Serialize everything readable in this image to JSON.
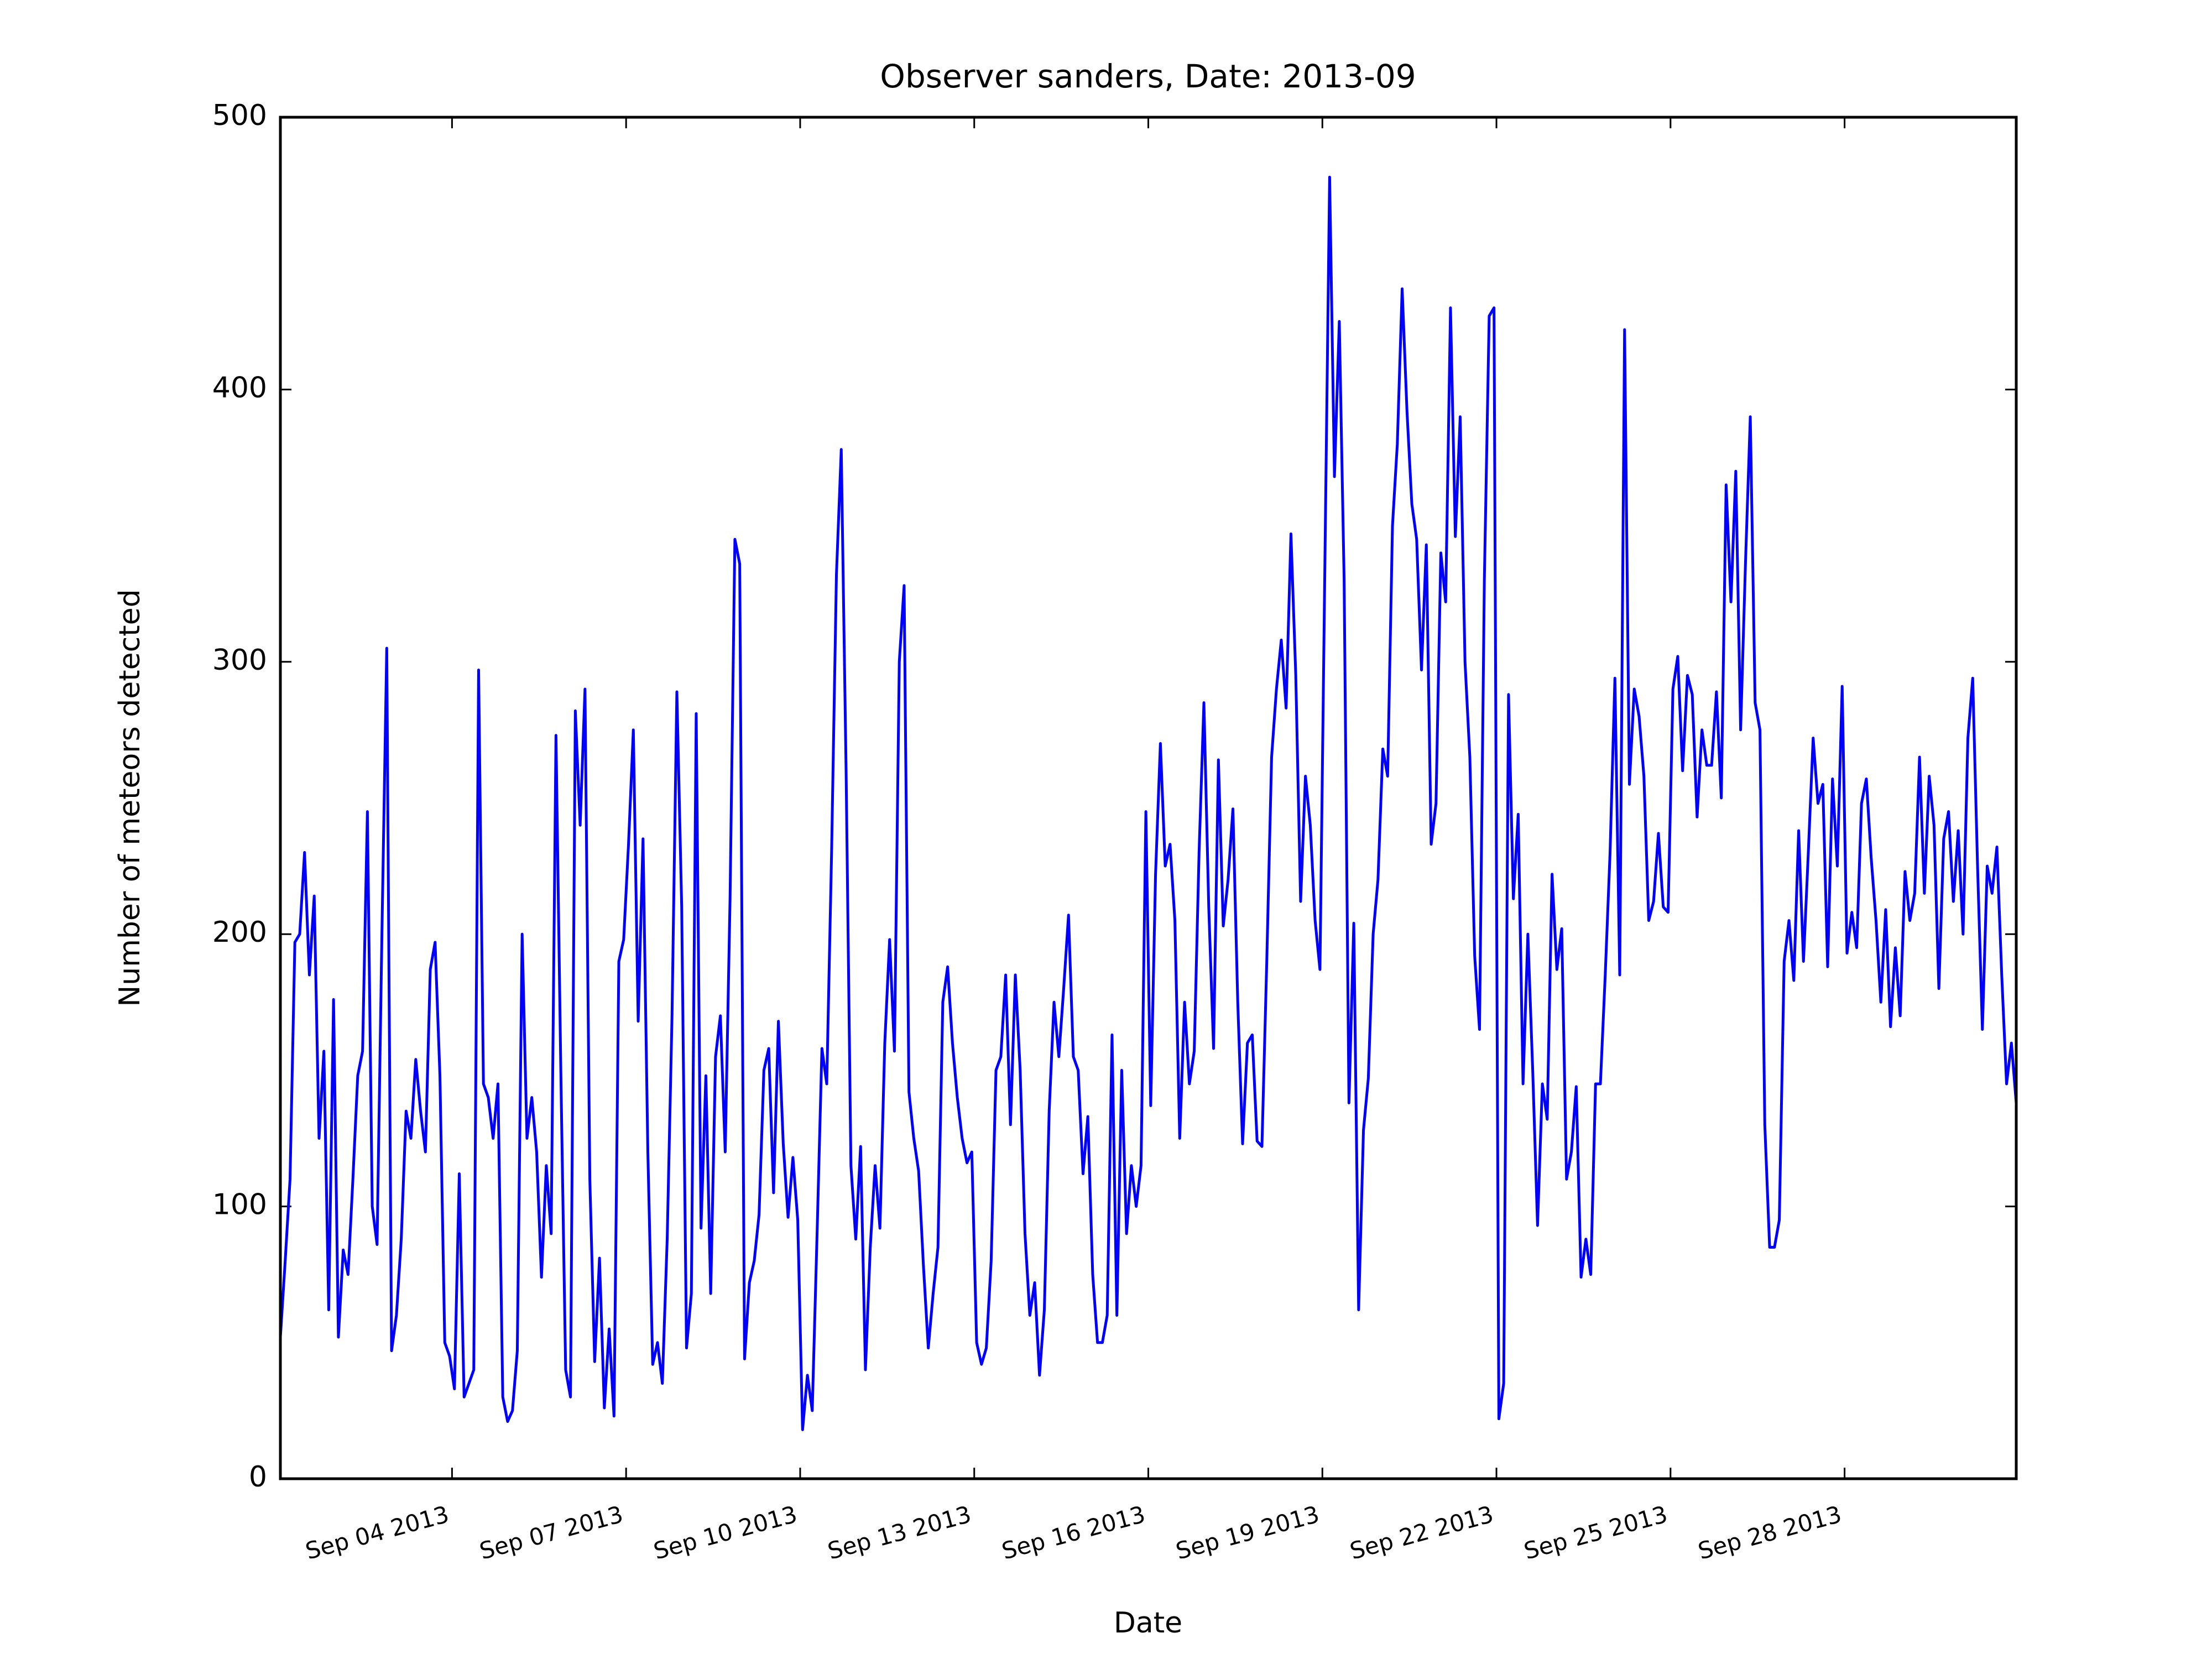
{
  "chart_data": {
    "type": "line",
    "title": "Observer sanders, Date: 2013-09",
    "x_label": "Date",
    "y_label": "Number of meteors detected",
    "x": [
      1,
      3,
      5,
      7,
      9,
      11,
      13,
      15,
      17,
      19,
      21,
      23,
      25,
      27,
      29,
      31,
      33,
      35,
      37,
      39,
      41,
      43,
      45,
      47,
      49,
      51,
      53,
      55,
      57,
      59,
      61,
      63,
      65,
      67,
      69,
      71,
      73,
      75,
      77,
      79,
      81,
      83,
      85,
      87,
      89,
      91,
      93,
      95,
      97,
      99,
      101,
      103,
      105,
      107,
      109,
      111,
      113,
      115,
      117,
      119,
      121,
      123,
      125,
      127,
      129,
      131,
      133,
      135,
      137,
      139,
      141,
      143,
      145,
      147,
      149,
      151,
      153,
      155,
      157,
      159,
      161,
      163,
      165,
      167,
      169,
      171,
      173,
      175,
      177,
      179,
      181,
      183,
      185,
      187,
      189,
      191,
      193,
      195,
      197,
      199,
      201,
      203,
      205,
      207,
      209,
      211,
      213,
      215,
      217,
      219,
      221,
      223,
      225,
      227,
      229,
      231,
      233,
      235,
      237,
      239,
      241,
      243,
      245,
      247,
      249,
      251,
      253,
      255,
      257,
      259,
      261,
      263,
      265,
      267,
      269,
      271,
      273,
      275,
      277,
      279,
      281,
      283,
      285,
      287,
      289,
      291,
      293,
      295,
      297,
      299,
      301,
      303,
      305,
      307,
      309,
      311,
      313,
      315,
      317,
      319,
      321,
      323,
      325,
      327,
      329,
      331,
      333,
      335,
      337,
      339,
      341,
      343,
      345,
      347,
      349,
      351,
      353,
      355,
      357,
      359,
      361,
      363,
      365,
      367,
      369,
      371,
      373,
      375,
      377,
      379,
      381,
      383,
      385,
      387,
      389,
      391,
      393,
      395,
      397,
      399,
      401,
      403,
      405,
      407,
      409,
      411,
      413,
      415,
      417,
      419,
      421,
      423,
      425,
      427,
      429,
      431,
      433,
      435,
      437,
      439,
      441,
      443,
      445,
      447,
      449,
      451,
      453,
      455,
      457,
      459,
      461,
      463,
      465,
      467,
      469,
      471,
      473,
      475,
      477,
      479,
      481,
      483,
      485,
      487,
      489,
      491,
      493,
      495,
      497,
      499,
      501,
      503,
      505,
      507,
      509,
      511,
      513,
      515,
      517,
      519,
      521,
      523,
      525,
      527,
      529,
      531,
      533,
      535,
      537,
      539,
      541,
      543,
      545,
      547,
      549,
      551,
      553,
      555,
      557,
      559,
      561,
      563,
      565,
      567,
      569,
      571,
      573,
      575,
      577,
      579,
      581,
      583,
      585,
      587,
      589,
      591,
      593,
      595,
      597,
      599,
      601,
      603,
      605,
      607,
      609,
      611,
      613,
      615,
      617,
      619,
      621,
      623,
      625,
      627,
      629,
      631,
      633,
      635,
      637,
      639,
      641,
      643,
      645,
      647,
      649,
      651,
      653,
      655,
      657,
      659,
      661,
      663,
      665,
      667,
      669,
      671,
      673,
      675,
      677,
      679,
      681,
      683,
      685,
      687,
      689,
      691,
      693,
      695,
      697,
      699,
      701,
      703,
      705,
      707,
      709,
      711,
      713,
      715,
      717,
      719
    ],
    "values": [
      52,
      80,
      110,
      197,
      200,
      230,
      185,
      214,
      125,
      157,
      62,
      176,
      52,
      84,
      75,
      110,
      148,
      157,
      245,
      100,
      86,
      200,
      305,
      47,
      60,
      88,
      135,
      125,
      154,
      135,
      120,
      187,
      197,
      148,
      50,
      45,
      33,
      112,
      30,
      35,
      40,
      297,
      145,
      140,
      125,
      145,
      30,
      21,
      25,
      47,
      200,
      125,
      140,
      120,
      74,
      115,
      90,
      273,
      150,
      40,
      30,
      282,
      240,
      290,
      110,
      43,
      81,
      26,
      55,
      23,
      190,
      198,
      233,
      275,
      168,
      235,
      120,
      42,
      50,
      35,
      88,
      170,
      289,
      210,
      48,
      68,
      281,
      92,
      148,
      68,
      155,
      170,
      120,
      213,
      345,
      336,
      44,
      72,
      80,
      97,
      150,
      158,
      105,
      168,
      123,
      96,
      118,
      95,
      18,
      38,
      25,
      90,
      158,
      145,
      230,
      332,
      378,
      260,
      115,
      88,
      122,
      40,
      85,
      115,
      92,
      160,
      198,
      157,
      300,
      328,
      142,
      125,
      113,
      78,
      48,
      68,
      85,
      175,
      188,
      160,
      140,
      125,
      116,
      120,
      50,
      42,
      48,
      80,
      150,
      155,
      185,
      130,
      185,
      150,
      90,
      60,
      72,
      38,
      62,
      135,
      175,
      155,
      180,
      207,
      155,
      150,
      112,
      133,
      75,
      50,
      50,
      60,
      163,
      60,
      150,
      90,
      115,
      100,
      115,
      245,
      137,
      222,
      270,
      225,
      233,
      205,
      125,
      175,
      145,
      157,
      230,
      285,
      210,
      158,
      264,
      203,
      220,
      246,
      175,
      123,
      160,
      163,
      124,
      122,
      190,
      265,
      290,
      308,
      283,
      347,
      295,
      212,
      258,
      240,
      205,
      187,
      333,
      478,
      368,
      425,
      330,
      138,
      204,
      62,
      128,
      147,
      200,
      220,
      268,
      258,
      350,
      380,
      437,
      392,
      358,
      345,
      297,
      343,
      233,
      248,
      340,
      322,
      430,
      346,
      390,
      300,
      265,
      192,
      165,
      330,
      427,
      430,
      22,
      35,
      288,
      213,
      244,
      145,
      200,
      150,
      93,
      145,
      132,
      222,
      187,
      202,
      110,
      120,
      144,
      74,
      88,
      75,
      145,
      145,
      185,
      230,
      294,
      185,
      422,
      255,
      290,
      280,
      258,
      205,
      212,
      237,
      210,
      208,
      290,
      302,
      260,
      295,
      288,
      243,
      275,
      262,
      262,
      289,
      250,
      365,
      322,
      370,
      275,
      336,
      390,
      285,
      275,
      130,
      85,
      85,
      95,
      190,
      205,
      183,
      238,
      190,
      230,
      272,
      248,
      255,
      188,
      257,
      225,
      291,
      193,
      208,
      195,
      248,
      257,
      228,
      205,
      175,
      209,
      166,
      195,
      170,
      223,
      205,
      215,
      265,
      215,
      258,
      240,
      180,
      235,
      245,
      212,
      238,
      200,
      272,
      294,
      225,
      165,
      225,
      215,
      232,
      185,
      145,
      160,
      138
    ],
    "color": "#0000ff",
    "xlim": [
      1,
      719
    ],
    "xticks": [
      {
        "value": 72,
        "label": "Sep 04 2013"
      },
      {
        "value": 144,
        "label": "Sep 07 2013"
      },
      {
        "value": 216,
        "label": "Sep 10 2013"
      },
      {
        "value": 288,
        "label": "Sep 13 2013"
      },
      {
        "value": 360,
        "label": "Sep 16 2013"
      },
      {
        "value": 432,
        "label": "Sep 19 2013"
      },
      {
        "value": 504,
        "label": "Sep 22 2013"
      },
      {
        "value": 576,
        "label": "Sep 25 2013"
      },
      {
        "value": 648,
        "label": "Sep 28 2013"
      }
    ],
    "ylim": [
      0,
      500
    ],
    "yticks": [
      0,
      100,
      200,
      300,
      400,
      500
    ],
    "grid": false
  }
}
